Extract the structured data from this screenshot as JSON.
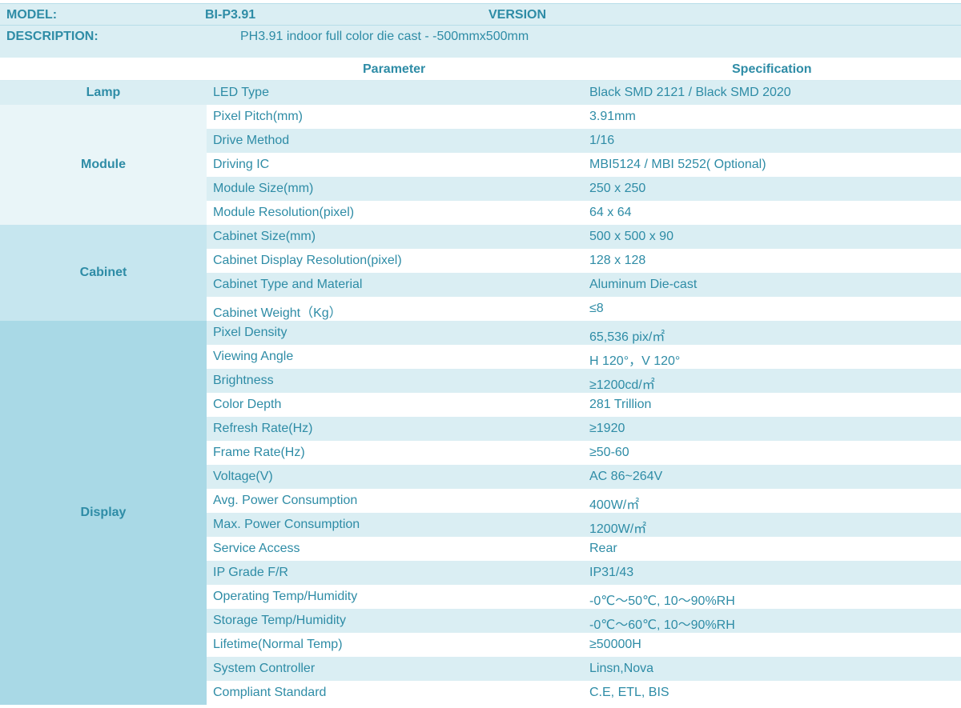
{
  "header": {
    "model_label": "MODEL:",
    "model_value": "BI-P3.91",
    "version_label": "VERSION",
    "description_label": "DESCRIPTION:",
    "description_value": "PH3.91 indoor full color   die cast - -500mmx500mm"
  },
  "columns": {
    "parameter": "Parameter",
    "specification": "Specification"
  },
  "groups": {
    "lamp": "Lamp",
    "module": "Module",
    "cabinet": "Cabinet",
    "display": "Display"
  },
  "rows": [
    {
      "group": "lamp",
      "parameter": "LED Type",
      "specification": "Black   SMD 2121 / Black SMD 2020"
    },
    {
      "group": "module",
      "parameter": "Pixel Pitch(mm)",
      "specification": "3.91mm"
    },
    {
      "group": "module",
      "parameter": "Drive Method",
      "specification": "1/16"
    },
    {
      "group": "module",
      "parameter": "Driving IC",
      "specification": "MBI5124 /    MBI 5252( Optional)"
    },
    {
      "group": "module",
      "parameter": "Module Size(mm)",
      "specification": "250 x 250"
    },
    {
      "group": "module",
      "parameter": "Module Resolution(pixel)",
      "specification": "64 x 64"
    },
    {
      "group": "cabinet",
      "parameter": "Cabinet Size(mm)",
      "specification": "500 x 500 x 90"
    },
    {
      "group": "cabinet",
      "parameter": "Cabinet Display Resolution(pixel)",
      "specification": "128 x 128"
    },
    {
      "group": "cabinet",
      "parameter": "Cabinet Type and Material",
      "specification": "Aluminum Die-cast"
    },
    {
      "group": "cabinet",
      "parameter": "Cabinet Weight（Kg）",
      "specification": "≤8"
    },
    {
      "group": "display",
      "parameter": "Pixel Density",
      "specification": "65,536 pix/㎡"
    },
    {
      "group": "display",
      "parameter": "Viewing Angle",
      "specification": "H 120°，V 120°"
    },
    {
      "group": "display",
      "parameter": "Brightness",
      "specification": "≥1200cd/㎡"
    },
    {
      "group": "display",
      "parameter": "Color Depth",
      "specification": "281   Trillion"
    },
    {
      "group": "display",
      "parameter": "Refresh Rate(Hz)",
      "specification": "≥1920"
    },
    {
      "group": "display",
      "parameter": "Frame Rate(Hz)",
      "specification": "≥50-60"
    },
    {
      "group": "display",
      "parameter": "Voltage(V)",
      "specification": "AC   86~264V"
    },
    {
      "group": "display",
      "parameter": "Avg. Power Consumption",
      "specification": "400W/㎡"
    },
    {
      "group": "display",
      "parameter": "Max. Power Consumption",
      "specification": "1200W/㎡"
    },
    {
      "group": "display",
      "parameter": "Service Access",
      "specification": "Rear"
    },
    {
      "group": "display",
      "parameter": "IP Grade F/R",
      "specification": "IP31/43"
    },
    {
      "group": "display",
      "parameter": "Operating Temp/Humidity",
      "specification": "-0℃～50℃, 10～90%RH"
    },
    {
      "group": "display",
      "parameter": "Storage Temp/Humidity",
      "specification": "-0℃～60℃, 10～90%RH"
    },
    {
      "group": "display",
      "parameter": "Lifetime(Normal Temp)",
      "specification": "≥50000H"
    },
    {
      "group": "display",
      "parameter": "System Controller",
      "specification": "Linsn,Nova"
    },
    {
      "group": "display",
      "parameter": "Compliant Standard",
      "specification": "C.E, ETL, BIS"
    }
  ]
}
